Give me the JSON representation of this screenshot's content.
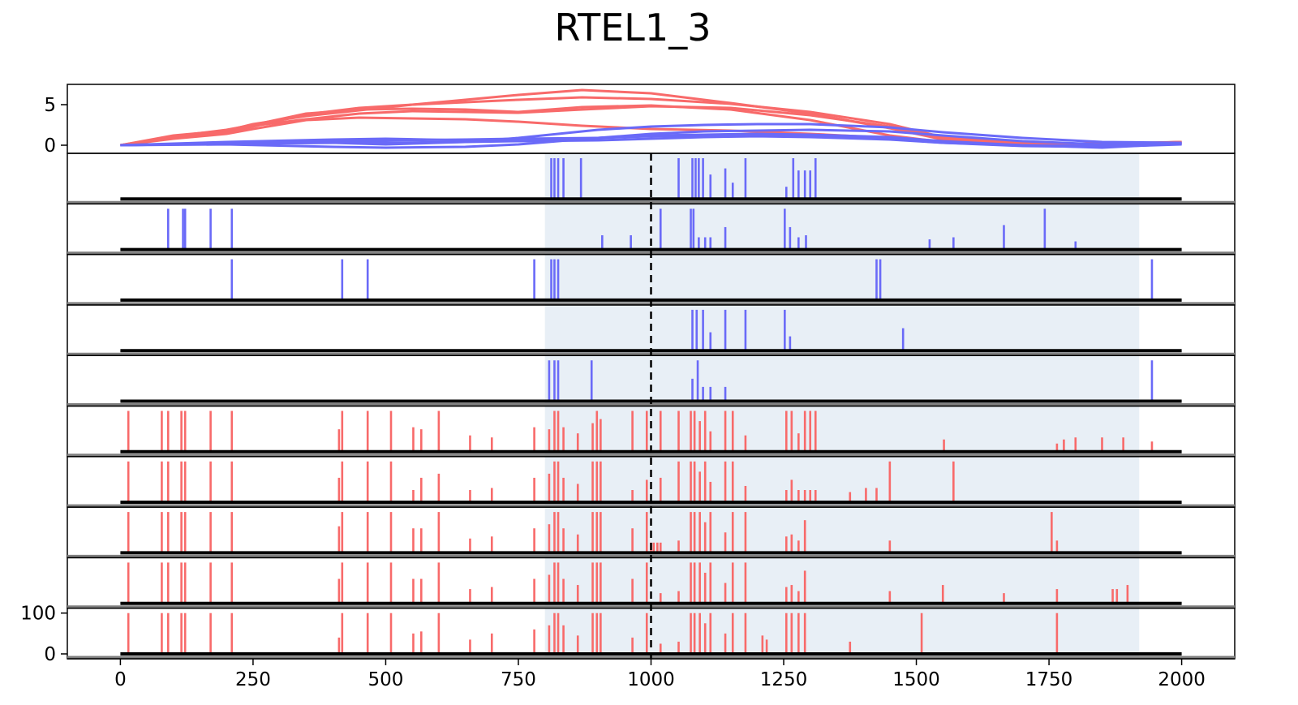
{
  "chart_data": {
    "type": "line",
    "title": "RTEL1_3",
    "xlim": [
      -100,
      2100
    ],
    "x_ticks": [
      0,
      250,
      500,
      750,
      1000,
      1250,
      1500,
      1750,
      2000
    ],
    "x_tick_labels": [
      "0",
      "250",
      "500",
      "750",
      "1000",
      "1250",
      "1500",
      "1750",
      "2000"
    ],
    "colors": {
      "red": "#f86a6a",
      "blue": "#6a6af8",
      "shade": "#e8eff6",
      "black": "#000000"
    },
    "shaded_region": [
      800,
      1920
    ],
    "dashed_marker_x": 1000,
    "top_panel": {
      "ylim": [
        -1,
        7.5
      ],
      "y_ticks": [
        0,
        5
      ],
      "y_tick_labels": [
        "0",
        "5"
      ],
      "series": [
        {
          "color": "red",
          "x": [
            0,
            100,
            200,
            250,
            350,
            450,
            550,
            650,
            750,
            870,
            1000,
            1150,
            1300,
            1450,
            1550,
            1650,
            1750,
            1850,
            2000
          ],
          "y": [
            0,
            1.2,
            1.8,
            2.6,
            3.6,
            4.3,
            5.0,
            5.6,
            6.2,
            6.8,
            6.4,
            5.2,
            3.9,
            2.1,
            0.7,
            0.3,
            0.1,
            0.1,
            0.3
          ]
        },
        {
          "color": "red",
          "x": [
            0,
            100,
            200,
            250,
            350,
            450,
            550,
            650,
            750,
            870,
            1000,
            1150,
            1300,
            1450,
            1550,
            1650,
            1750,
            1850,
            2000
          ],
          "y": [
            0,
            1.0,
            1.6,
            2.3,
            3.8,
            4.6,
            5.0,
            5.3,
            5.6,
            5.9,
            5.7,
            5.1,
            4.1,
            2.6,
            1.0,
            0.5,
            0.2,
            0.2,
            0.4
          ]
        },
        {
          "color": "red",
          "x": [
            0,
            100,
            200,
            250,
            350,
            450,
            550,
            650,
            750,
            870,
            1000,
            1150,
            1300,
            1450,
            1550,
            1650,
            1750,
            1850,
            2000
          ],
          "y": [
            0,
            0.9,
            1.5,
            2.4,
            3.2,
            3.9,
            4.2,
            4.1,
            4.0,
            4.4,
            4.8,
            4.6,
            3.7,
            2.3,
            0.9,
            0.4,
            0.2,
            0.1,
            0.3
          ]
        },
        {
          "color": "red",
          "x": [
            0,
            100,
            200,
            250,
            350,
            450,
            550,
            650,
            750,
            870,
            1000,
            1150,
            1300,
            1450,
            1550,
            1650,
            1750,
            1850,
            2000
          ],
          "y": [
            0,
            1.1,
            1.9,
            2.5,
            3.9,
            4.4,
            4.5,
            4.4,
            4.1,
            4.7,
            4.9,
            4.4,
            3.1,
            1.2,
            0.4,
            0.2,
            0.1,
            0.1,
            0.4
          ]
        },
        {
          "color": "red",
          "x": [
            0,
            100,
            200,
            250,
            350,
            450,
            550,
            650,
            750,
            870,
            1000,
            1150,
            1300,
            1450,
            1550,
            1650,
            1750,
            1850,
            2000
          ],
          "y": [
            0,
            0.8,
            1.4,
            2.0,
            3.1,
            3.4,
            3.3,
            3.2,
            2.9,
            2.4,
            2.0,
            1.8,
            1.4,
            0.9,
            0.5,
            0.3,
            0.1,
            0.1,
            0.4
          ]
        },
        {
          "color": "blue",
          "x": [
            0,
            200,
            400,
            500,
            650,
            750,
            900,
            1000,
            1100,
            1200,
            1300,
            1450,
            1550,
            1700,
            1850,
            2000
          ],
          "y": [
            0,
            0.2,
            0.3,
            0.1,
            0.4,
            0.9,
            1.9,
            2.3,
            2.5,
            2.6,
            2.6,
            2.2,
            1.6,
            0.9,
            0.4,
            0.3
          ]
        },
        {
          "color": "blue",
          "x": [
            0,
            200,
            400,
            500,
            650,
            750,
            900,
            1000,
            1100,
            1200,
            1300,
            1450,
            1550,
            1700,
            1850,
            2000
          ],
          "y": [
            0,
            0.1,
            -0.2,
            -0.3,
            -0.2,
            0.1,
            0.9,
            1.4,
            1.7,
            1.8,
            1.9,
            1.7,
            1.2,
            0.5,
            0.1,
            0.2
          ]
        },
        {
          "color": "blue",
          "x": [
            0,
            200,
            400,
            500,
            650,
            750,
            900,
            1000,
            1100,
            1200,
            1300,
            1450,
            1550,
            1700,
            1850,
            2000
          ],
          "y": [
            0,
            0.4,
            0.7,
            0.8,
            0.6,
            0.5,
            0.9,
            1.2,
            1.3,
            1.4,
            1.3,
            1.0,
            0.5,
            0.0,
            -0.3,
            0.2
          ]
        },
        {
          "color": "blue",
          "x": [
            0,
            200,
            400,
            500,
            650,
            750,
            900,
            1000,
            1100,
            1200,
            1300,
            1450,
            1550,
            1700,
            1850,
            2000
          ],
          "y": [
            0,
            0.3,
            0.5,
            0.6,
            0.7,
            0.8,
            0.9,
            1.1,
            1.2,
            1.3,
            1.2,
            0.8,
            0.3,
            -0.1,
            -0.2,
            0.1
          ]
        },
        {
          "color": "blue",
          "x": [
            0,
            200,
            400,
            500,
            650,
            750,
            900,
            1000,
            1100,
            1200,
            1300,
            1450,
            1550,
            1700,
            1850,
            2000
          ],
          "y": [
            0,
            0.2,
            0.3,
            0.3,
            0.4,
            0.5,
            0.6,
            0.8,
            1.0,
            1.1,
            1.0,
            0.7,
            0.3,
            0.0,
            -0.1,
            0.2
          ]
        }
      ]
    },
    "track_panels": {
      "ylim": [
        0,
        100
      ],
      "y_ticks": [
        0,
        100
      ],
      "y_tick_labels": [
        "0",
        "100"
      ],
      "tracks": [
        {
          "color": "blue",
          "positions": [
            812,
            818,
            825,
            835,
            868,
            1052,
            1078,
            1084,
            1090,
            1098,
            1112,
            1140,
            1154,
            1178,
            1255,
            1268,
            1278,
            1290,
            1300,
            1310
          ],
          "heights": [
            100,
            100,
            100,
            100,
            100,
            100,
            100,
            100,
            100,
            100,
            60,
            75,
            40,
            100,
            30,
            100,
            70,
            70,
            70,
            100
          ]
        },
        {
          "color": "blue",
          "positions": [
            90,
            118,
            122,
            170,
            210,
            908,
            962,
            1018,
            1075,
            1080,
            1090,
            1102,
            1112,
            1140,
            1252,
            1262,
            1278,
            1292,
            1525,
            1570,
            1665,
            1742,
            1800
          ],
          "heights": [
            100,
            100,
            100,
            100,
            100,
            35,
            35,
            100,
            100,
            100,
            30,
            30,
            30,
            55,
            100,
            55,
            30,
            35,
            25,
            30,
            60,
            100,
            20
          ]
        },
        {
          "color": "blue",
          "positions": [
            210,
            418,
            466,
            780,
            812,
            818,
            825,
            1425,
            1432,
            1944
          ],
          "heights": [
            100,
            100,
            100,
            100,
            100,
            100,
            100,
            100,
            100,
            100
          ]
        },
        {
          "color": "blue",
          "positions": [
            1078,
            1086,
            1098,
            1112,
            1140,
            1178,
            1252,
            1262,
            1475
          ],
          "heights": [
            100,
            100,
            100,
            45,
            100,
            100,
            100,
            35,
            55
          ]
        },
        {
          "color": "blue",
          "positions": [
            808,
            818,
            825,
            888,
            1078,
            1088,
            1098,
            1112,
            1140,
            1944
          ],
          "heights": [
            100,
            100,
            100,
            100,
            55,
            100,
            35,
            35,
            35,
            100
          ]
        },
        {
          "color": "red",
          "positions": [
            15,
            78,
            90,
            115,
            122,
            170,
            210,
            412,
            418,
            466,
            510,
            552,
            567,
            600,
            659,
            700,
            780,
            808,
            818,
            825,
            835,
            862,
            890,
            898,
            905,
            965,
            992,
            1018,
            1052,
            1075,
            1082,
            1092,
            1102,
            1112,
            1140,
            1154,
            1178,
            1255,
            1265,
            1278,
            1290,
            1300,
            1310,
            1552,
            1765,
            1778,
            1800,
            1850,
            1890,
            1944
          ],
          "heights": [
            100,
            100,
            100,
            100,
            100,
            100,
            100,
            55,
            100,
            100,
            100,
            60,
            55,
            100,
            40,
            35,
            60,
            55,
            100,
            100,
            60,
            45,
            70,
            100,
            80,
            100,
            100,
            100,
            100,
            100,
            100,
            75,
            100,
            50,
            100,
            100,
            40,
            100,
            100,
            45,
            100,
            100,
            100,
            30,
            20,
            30,
            35,
            35,
            35,
            25
          ]
        },
        {
          "color": "red",
          "positions": [
            15,
            78,
            90,
            115,
            122,
            170,
            210,
            412,
            418,
            466,
            510,
            552,
            567,
            600,
            659,
            700,
            780,
            808,
            818,
            825,
            835,
            862,
            890,
            898,
            905,
            965,
            992,
            1018,
            1052,
            1075,
            1082,
            1092,
            1102,
            1112,
            1140,
            1154,
            1178,
            1255,
            1265,
            1278,
            1290,
            1300,
            1310,
            1375,
            1405,
            1425,
            1450,
            1570
          ],
          "heights": [
            100,
            100,
            100,
            100,
            100,
            100,
            100,
            60,
            100,
            100,
            100,
            30,
            60,
            70,
            30,
            35,
            60,
            70,
            100,
            100,
            60,
            45,
            100,
            100,
            100,
            30,
            55,
            60,
            100,
            100,
            100,
            75,
            100,
            50,
            100,
            100,
            40,
            30,
            55,
            30,
            30,
            30,
            30,
            25,
            35,
            35,
            100,
            100
          ]
        },
        {
          "color": "red",
          "positions": [
            15,
            78,
            90,
            115,
            122,
            170,
            210,
            412,
            418,
            466,
            510,
            552,
            567,
            600,
            659,
            700,
            780,
            808,
            818,
            825,
            835,
            862,
            890,
            898,
            905,
            965,
            992,
            1000,
            1005,
            1012,
            1018,
            1052,
            1075,
            1082,
            1092,
            1102,
            1112,
            1140,
            1154,
            1178,
            1255,
            1265,
            1278,
            1290,
            1450,
            1755,
            1765
          ],
          "heights": [
            100,
            100,
            100,
            100,
            100,
            100,
            100,
            65,
            100,
            100,
            100,
            60,
            60,
            100,
            35,
            40,
            60,
            70,
            100,
            100,
            60,
            45,
            100,
            100,
            100,
            60,
            100,
            25,
            25,
            25,
            25,
            30,
            100,
            100,
            100,
            75,
            100,
            50,
            100,
            100,
            40,
            45,
            30,
            80,
            30,
            100,
            30
          ]
        },
        {
          "color": "red",
          "positions": [
            15,
            78,
            90,
            115,
            122,
            170,
            210,
            412,
            418,
            466,
            510,
            552,
            567,
            600,
            659,
            700,
            780,
            808,
            818,
            825,
            835,
            862,
            890,
            898,
            905,
            965,
            992,
            1018,
            1052,
            1075,
            1082,
            1092,
            1102,
            1112,
            1140,
            1154,
            1178,
            1255,
            1265,
            1278,
            1290,
            1450,
            1550,
            1665,
            1765,
            1870,
            1878,
            1898
          ],
          "heights": [
            100,
            100,
            100,
            100,
            100,
            100,
            100,
            60,
            100,
            100,
            100,
            60,
            60,
            100,
            35,
            40,
            60,
            70,
            100,
            100,
            60,
            45,
            100,
            100,
            100,
            60,
            100,
            25,
            30,
            100,
            100,
            100,
            75,
            100,
            50,
            100,
            100,
            40,
            45,
            30,
            80,
            30,
            45,
            25,
            35,
            35,
            35,
            45
          ]
        },
        {
          "color": "red",
          "positions": [
            15,
            78,
            90,
            115,
            122,
            170,
            210,
            412,
            418,
            466,
            510,
            552,
            567,
            600,
            659,
            700,
            780,
            808,
            818,
            825,
            835,
            862,
            890,
            898,
            905,
            965,
            992,
            1018,
            1052,
            1075,
            1082,
            1092,
            1102,
            1112,
            1140,
            1154,
            1178,
            1210,
            1218,
            1255,
            1265,
            1278,
            1290,
            1375,
            1510,
            1765
          ],
          "heights": [
            100,
            100,
            100,
            100,
            100,
            100,
            100,
            40,
            100,
            100,
            100,
            50,
            55,
            100,
            35,
            50,
            60,
            70,
            100,
            100,
            70,
            45,
            100,
            100,
            100,
            40,
            100,
            25,
            30,
            100,
            100,
            100,
            75,
            100,
            50,
            100,
            100,
            45,
            35,
            100,
            100,
            100,
            100,
            30,
            100,
            100
          ]
        }
      ]
    }
  }
}
